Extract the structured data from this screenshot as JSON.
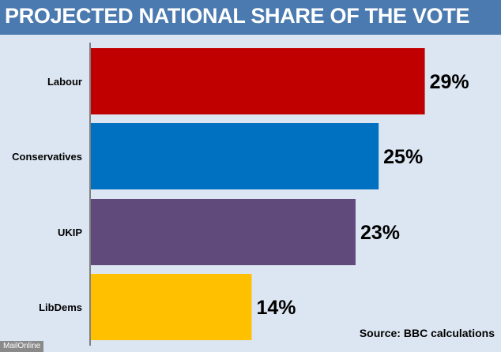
{
  "chart_data": {
    "type": "bar",
    "orientation": "horizontal",
    "title": "PROJECTED NATIONAL SHARE OF THE VOTE",
    "categories": [
      "Labour",
      "Conservatives",
      "UKIP",
      "LibDems"
    ],
    "values": [
      29,
      25,
      23,
      14
    ],
    "value_labels": [
      "29%",
      "25%",
      "23%",
      "14%"
    ],
    "colors": [
      "#c00000",
      "#0070c0",
      "#604a7b",
      "#ffc000"
    ],
    "xlim": [
      0,
      33
    ],
    "grid": false,
    "legend": "none",
    "source": "Source: BBC calculations"
  },
  "watermark": "MailOnline"
}
